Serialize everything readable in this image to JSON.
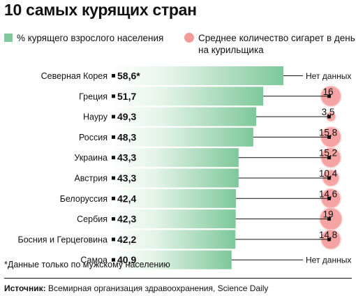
{
  "title": "10 самых курящих стран",
  "legend": {
    "green": "% курящего взрослого населения",
    "red": "Среднее количество сигарет в день на курильщика"
  },
  "colors": {
    "bar_start": "#ffffff",
    "bar_end": "#7ec89a",
    "bubble": "#f49a9a",
    "bubble_edge": "#fbd0d0",
    "line": "#111111"
  },
  "chart_data": {
    "type": "bar",
    "orientation": "horizontal",
    "categories": [
      "Северная Корея",
      "Греция",
      "Науру",
      "Россия",
      "Украина",
      "Австрия",
      "Белоруссия",
      "Сербия",
      "Босния и Герцеговина",
      "Самоа"
    ],
    "series": [
      {
        "name": "% курящего взрослого населения",
        "values": [
          58.6,
          51.7,
          49.3,
          48.3,
          43.3,
          43.3,
          42.4,
          42.3,
          42.2,
          40.9
        ],
        "labels": [
          "58,6*",
          "51,7",
          "49,3",
          "48,3",
          "43,3",
          "43,3",
          "42,4",
          "42,3",
          "42,2",
          "40,9"
        ]
      },
      {
        "name": "Среднее количество сигарет в день на курильщика",
        "values": [
          null,
          16,
          3.5,
          15.8,
          15.2,
          10.4,
          14.6,
          19,
          14.8,
          null
        ],
        "labels": [
          "Нет данных",
          "16",
          "3,5",
          "15,8",
          "15,2",
          "10,4",
          "14,6",
          "19",
          "14,8",
          "Нет данных"
        ]
      }
    ]
  },
  "footnote": "*Данные только по мужскому населению",
  "source": {
    "label": "Источник:",
    "text": "Всемирная организация здравоохранения, Science Daily"
  }
}
